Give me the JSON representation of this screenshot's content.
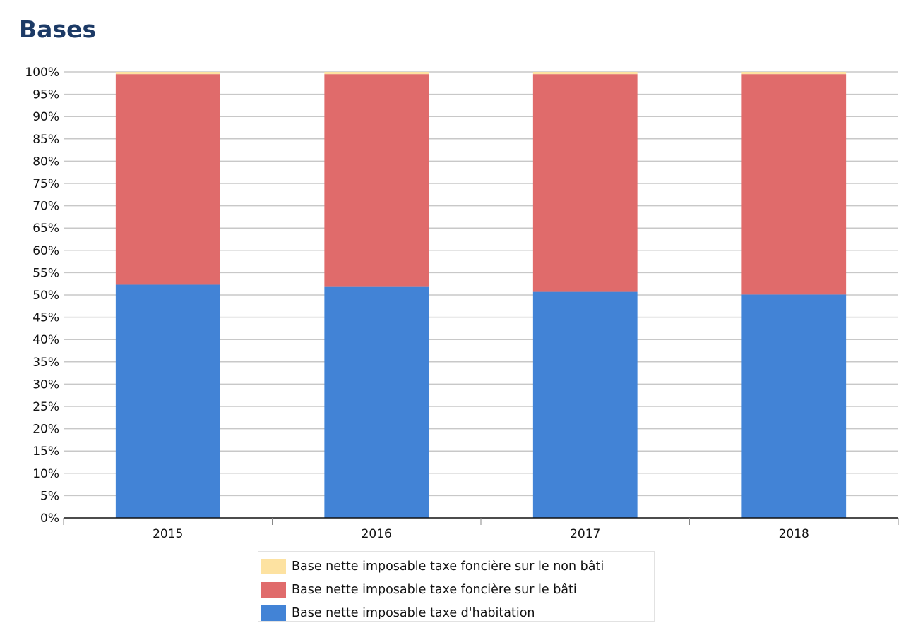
{
  "title": "Bases",
  "chart_data": {
    "type": "bar",
    "stacked": true,
    "normalized": true,
    "categories": [
      "2015",
      "2016",
      "2017",
      "2018"
    ],
    "series": [
      {
        "name": "Base nette imposable taxe d'habitation",
        "color": "#4283d6",
        "values": [
          52.3,
          51.8,
          50.7,
          50.1
        ]
      },
      {
        "name": "Base nette imposable taxe foncière sur le bâti",
        "color": "#e06b6b",
        "values": [
          47.2,
          47.7,
          48.8,
          49.4
        ]
      },
      {
        "name": "Base nette imposable taxe foncière sur le non bâti",
        "color": "#fde2a1",
        "values": [
          0.5,
          0.5,
          0.5,
          0.5
        ]
      }
    ],
    "yticks": [
      "0%",
      "5%",
      "10%",
      "15%",
      "20%",
      "25%",
      "30%",
      "35%",
      "40%",
      "45%",
      "50%",
      "55%",
      "60%",
      "65%",
      "70%",
      "75%",
      "80%",
      "85%",
      "90%",
      "95%",
      "100%"
    ],
    "ylim": [
      0,
      100
    ],
    "grid": true,
    "legend_position": "bottom"
  }
}
